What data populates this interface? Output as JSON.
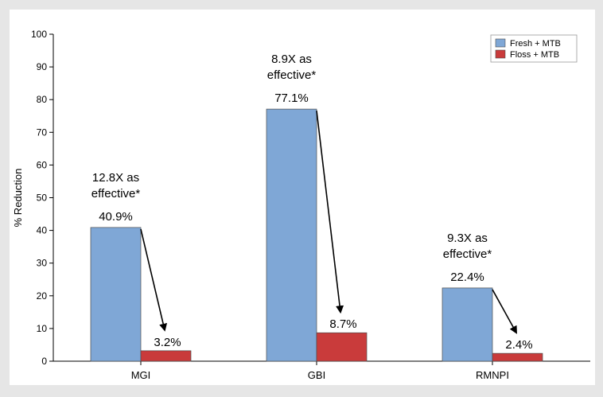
{
  "chart_data": {
    "type": "bar",
    "title": "",
    "xlabel": "",
    "ylabel": "% Reduction",
    "ylim": [
      0,
      100
    ],
    "yticks": [
      0,
      10,
      20,
      30,
      40,
      50,
      60,
      70,
      80,
      90,
      100
    ],
    "categories": [
      "MGI",
      "GBI",
      "RMNPI"
    ],
    "series": [
      {
        "name": "Fresh + MTB",
        "color": "#7fa7d6",
        "values": [
          40.9,
          77.1,
          22.4
        ],
        "labels": [
          "40.9%",
          "77.1%",
          "22.4%"
        ]
      },
      {
        "name": "Floss + MTB",
        "color": "#c93b3b",
        "values": [
          3.2,
          8.7,
          2.4
        ],
        "labels": [
          "3.2%",
          "8.7%",
          "2.4%"
        ]
      }
    ],
    "annotations": [
      {
        "category": "MGI",
        "lines": [
          "12.8X as",
          "effective*"
        ]
      },
      {
        "category": "GBI",
        "lines": [
          "8.9X as",
          "effective*"
        ]
      },
      {
        "category": "RMNPI",
        "lines": [
          "9.3X as",
          "effective*"
        ]
      }
    ],
    "legend_position": "top-right",
    "grid": false
  }
}
